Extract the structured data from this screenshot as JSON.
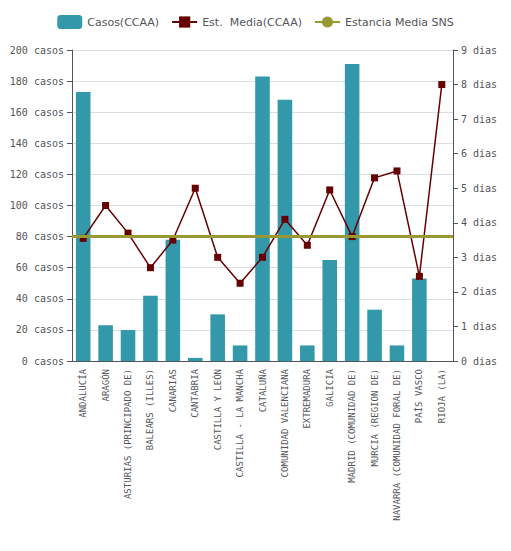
{
  "chart_data": {
    "type": "bar",
    "categories": [
      "ANDALUCÍA",
      "ARAGÓN",
      "ASTURIAS (PRINCIPADO DE)",
      "BALEARS (ILLES)",
      "CANARIAS",
      "CANTABRIA",
      "CASTILLA Y LEÓN",
      "CASTILLA - LA MANCHA",
      "CATALUÑA",
      "COMUNIDAD VALENCIANA",
      "EXTREMADURA",
      "GALICIA",
      "MADRID (COMUNIDAD DE)",
      "MURCIA (REGION DE)",
      "NAVARRA (COMUNIDAD FORAL DE)",
      "PAÍS VASCO",
      "RIOJA (LA)"
    ],
    "series": [
      {
        "name": "Casos(CCAA)",
        "type": "bar",
        "color": "#3399AA",
        "values": [
          173,
          23,
          20,
          42,
          78,
          2,
          30,
          10,
          183,
          168,
          10,
          65,
          191,
          33,
          10,
          53,
          0
        ]
      },
      {
        "name": "Est.  Media(CCAA)",
        "type": "line",
        "axis": "y2",
        "color": "#660000",
        "marker": "square",
        "values": [
          3.55,
          4.5,
          3.7,
          2.7,
          3.5,
          5.0,
          3.0,
          2.25,
          3.0,
          4.1,
          3.35,
          4.95,
          3.6,
          5.3,
          5.5,
          2.45,
          8.0
        ]
      },
      {
        "name": "Estancia Media SNS",
        "type": "hline",
        "axis": "y2",
        "color": "#999933",
        "value": 3.6
      }
    ],
    "ylim": [
      0,
      200
    ],
    "yticks": [
      {
        "value": 0,
        "label": "0 casos"
      },
      {
        "value": 20,
        "label": "20 casos"
      },
      {
        "value": 40,
        "label": "40 casos"
      },
      {
        "value": 60,
        "label": "60 casos"
      },
      {
        "value": 80,
        "label": "80 casos"
      },
      {
        "value": 100,
        "label": "100 casos"
      },
      {
        "value": 120,
        "label": "120 casos"
      },
      {
        "value": 140,
        "label": "140 casos"
      },
      {
        "value": 160,
        "label": "160 casos"
      },
      {
        "value": 180,
        "label": "180 casos"
      },
      {
        "value": 200,
        "label": "200 casos"
      }
    ],
    "y2lim": [
      0,
      9
    ],
    "y2ticks": [
      {
        "value": 0,
        "label": "0 dias"
      },
      {
        "value": 1,
        "label": "1 dias"
      },
      {
        "value": 2,
        "label": "2 dias"
      },
      {
        "value": 3,
        "label": "3 dias"
      },
      {
        "value": 4,
        "label": "4 dias"
      },
      {
        "value": 5,
        "label": "5 dias"
      },
      {
        "value": 6,
        "label": "6 dias"
      },
      {
        "value": 7,
        "label": "7 dias"
      },
      {
        "value": 8,
        "label": "8 dias"
      },
      {
        "value": 9,
        "label": "9 dias"
      }
    ],
    "grid": true,
    "legend": "top"
  }
}
